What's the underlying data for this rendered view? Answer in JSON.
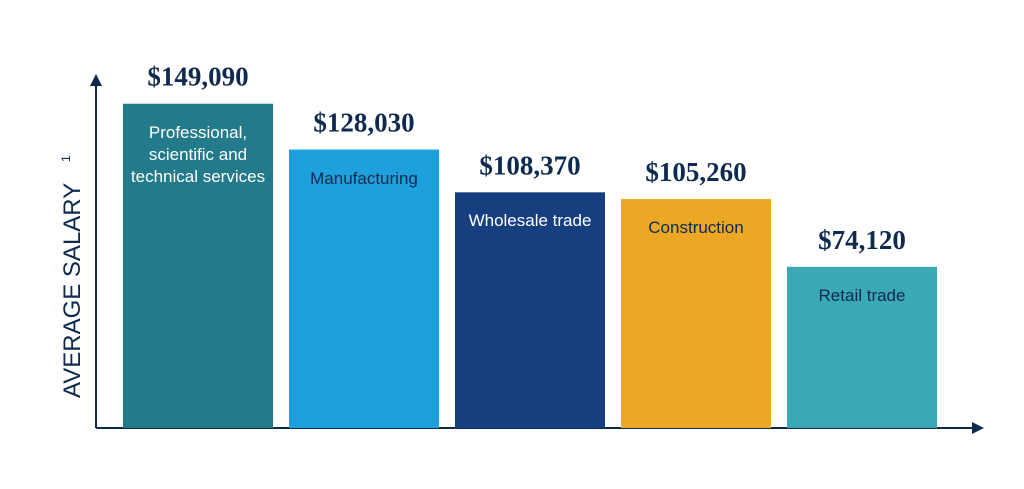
{
  "chart_data": {
    "type": "bar",
    "y_label": "AVERAGE SALARY",
    "y_label_note": "1",
    "categories": [
      "Professional, scientific and technical services",
      "Manufacturing",
      "Wholesale trade",
      "Construction",
      "Retail trade"
    ],
    "values": [
      149090,
      128030,
      108370,
      105260,
      74120
    ],
    "value_labels": [
      "$149,090",
      "$128,030",
      "$108,370",
      "$105,260",
      "$74,120"
    ],
    "colors": [
      "#237a8a",
      "#1ea0dc",
      "#173f7f",
      "#eca824",
      "#3aa9b5"
    ],
    "label_colors": [
      "#ffffff",
      "#0f2a4f",
      "#ffffff",
      "#0f2a4f",
      "#0f2a4f"
    ],
    "ylim": [
      0,
      160000
    ]
  }
}
